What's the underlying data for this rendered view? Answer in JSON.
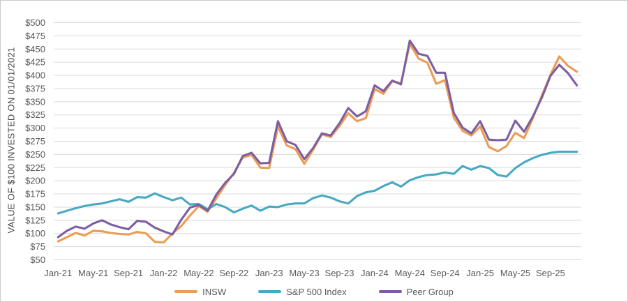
{
  "y_axis": {
    "title": "VALUE OF $100 INVESTED ON 01/01/2021",
    "tick_labels": [
      "$500",
      "$475",
      "$450",
      "$425",
      "$400",
      "$375",
      "$350",
      "$325",
      "$300",
      "$275",
      "$250",
      "$225",
      "$200",
      "$175",
      "$150",
      "$125",
      "$100",
      "$75",
      "$50"
    ]
  },
  "x_axis": {
    "tick_labels": [
      "Jan-21",
      "May-21",
      "Sep-21",
      "Jan-22",
      "May-22",
      "Sep-22",
      "Jan-23",
      "May-23",
      "Sep-23",
      "Jan-24",
      "May-24",
      "Sep-24",
      "Jan-25",
      "May-25",
      "Sep-25"
    ]
  },
  "legend": {
    "items": [
      {
        "label": "INSW",
        "color": "#EC9C53"
      },
      {
        "label": "S&P 500 Index",
        "color": "#48A9C2"
      },
      {
        "label": "Peer Group",
        "color": "#7C5EA2"
      }
    ]
  },
  "colors": {
    "gridline": "#D9D9D9",
    "tick_text": "#595959",
    "axis_title_text": "#474747",
    "frame_border": "#CACAD2"
  },
  "chart_data": {
    "type": "line",
    "title": "",
    "xlabel": "",
    "ylabel": "VALUE OF $100 INVESTED ON 01/01/2021",
    "ylim": [
      50,
      500
    ],
    "y_tick_step": 25,
    "grid": "horizontal-only",
    "legend_position": "bottom-center",
    "x_tick_every_n_months": 4,
    "x": [
      "Jan-21",
      "Feb-21",
      "Mar-21",
      "Apr-21",
      "May-21",
      "Jun-21",
      "Jul-21",
      "Aug-21",
      "Sep-21",
      "Oct-21",
      "Nov-21",
      "Dec-21",
      "Jan-22",
      "Feb-22",
      "Mar-22",
      "Apr-22",
      "May-22",
      "Jun-22",
      "Jul-22",
      "Aug-22",
      "Sep-22",
      "Oct-22",
      "Nov-22",
      "Dec-22",
      "Jan-23",
      "Feb-23",
      "Mar-23",
      "Apr-23",
      "May-23",
      "Jun-23",
      "Jul-23",
      "Aug-23",
      "Sep-23",
      "Oct-23",
      "Nov-23",
      "Dec-23",
      "Jan-24",
      "Feb-24",
      "Mar-24",
      "Apr-24",
      "May-24",
      "Jun-24",
      "Jul-24",
      "Aug-24",
      "Sep-24",
      "Oct-24",
      "Nov-24",
      "Dec-24",
      "Jan-25",
      "Feb-25",
      "Mar-25",
      "Apr-25",
      "May-25",
      "Jun-25",
      "Jul-25",
      "Aug-25",
      "Sep-25",
      "Oct-25",
      "Nov-25",
      "Dec-25"
    ],
    "series": [
      {
        "name": "INSW",
        "color": "#EC9C53",
        "values": [
          85,
          93,
          101,
          96,
          105,
          104,
          101,
          99,
          98,
          103,
          100,
          84,
          83,
          100,
          114,
          134,
          152,
          141,
          167,
          192,
          215,
          244,
          249,
          225,
          224,
          303,
          267,
          260,
          232,
          259,
          288,
          283,
          304,
          328,
          313,
          319,
          374,
          365,
          389,
          385,
          460,
          432,
          424,
          384,
          391,
          320,
          295,
          286,
          303,
          264,
          256,
          266,
          291,
          281,
          319,
          361,
          401,
          436,
          418,
          407
        ]
      },
      {
        "name": "S&P 500 Index",
        "color": "#48A9C2",
        "values": [
          138,
          143,
          148,
          152,
          155,
          157,
          161,
          165,
          160,
          169,
          168,
          176,
          169,
          163,
          168,
          155,
          156,
          146,
          156,
          150,
          140,
          147,
          153,
          143,
          151,
          150,
          155,
          157,
          157,
          167,
          172,
          168,
          161,
          157,
          171,
          178,
          181,
          190,
          197,
          189,
          201,
          207,
          211,
          212,
          216,
          213,
          228,
          221,
          228,
          224,
          211,
          208,
          224,
          235,
          243,
          249,
          253,
          255,
          255,
          255
        ]
      },
      {
        "name": "Peer Group",
        "color": "#7C5EA2",
        "values": [
          93,
          105,
          113,
          109,
          119,
          125,
          117,
          112,
          108,
          124,
          122,
          111,
          104,
          98,
          126,
          149,
          154,
          143,
          174,
          196,
          213,
          247,
          253,
          233,
          234,
          313,
          275,
          268,
          241,
          262,
          290,
          286,
          309,
          338,
          322,
          332,
          381,
          370,
          390,
          383,
          466,
          441,
          437,
          405,
          405,
          329,
          301,
          290,
          313,
          278,
          277,
          278,
          314,
          293,
          322,
          357,
          399,
          420,
          404,
          381
        ]
      }
    ]
  }
}
